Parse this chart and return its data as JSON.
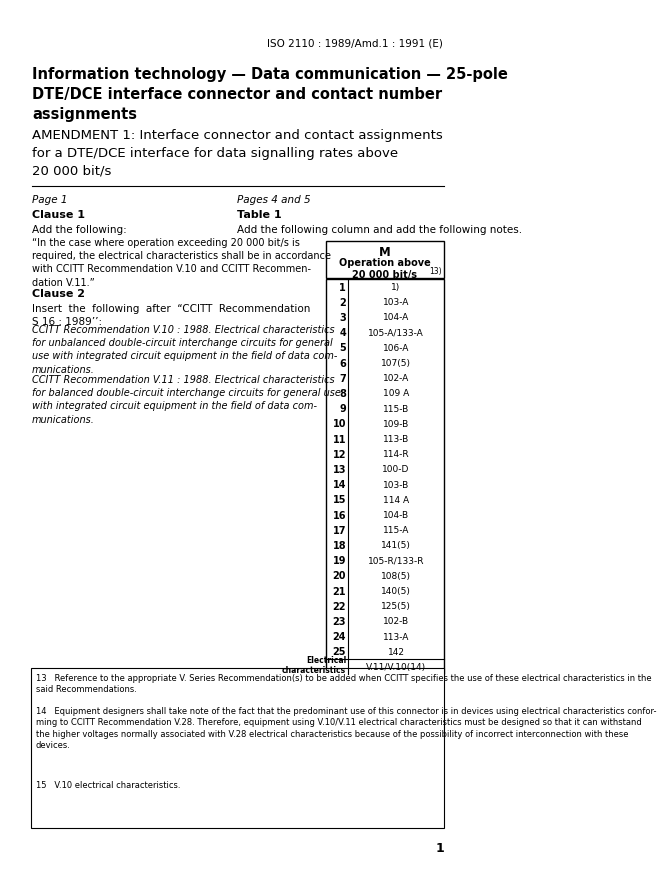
{
  "header": "ISO 2110 : 1989/Amd.1 : 1991 (E)",
  "title_bold": "Information technology — Data communication — 25-pole\nDTE/DCE interface connector and contact number\nassignments",
  "title_amendment": "AMENDMENT 1: Interface connector and contact assignments\nfor a DTE/DCE interface for data signalling rates above\n20 000 bit/s",
  "left_col_header1": "Page 1",
  "left_col_header2": "Clause 1",
  "left_col_add": "Add the following:",
  "left_clause1_text": "“In the case where operation exceeding 20 000 bit/s is\nrequired, the electrical characteristics shall be in accordance\nwith CCITT Recommendation V.10 and CCITT Recommen-\ndation V.11.”",
  "left_col_header3": "Clause 2",
  "left_clause2_intro": "Insert  the  following  after  “CCITT  Recommendation\nS 16 : 1989’’:",
  "left_clause2_ref1_title": "CCITT Recommendation V.10 : 1988. Electrical characteristics\nfor unbalanced double-circuit interchange circuits for general\nuse with integrated circuit equipment in the field of data com-\nmunications.",
  "left_clause2_ref2_title": "CCITT Recommendation V.11 : 1988. Electrical characteristics\nfor balanced double-circuit interchange circuits for general use\nwith integrated circuit equipment in the field of data com-\nmunications.",
  "right_col_header1": "Pages 4 and 5",
  "right_col_header2": "Table 1",
  "right_col_add": "Add the following column and add the following notes.",
  "table_col_header": "M",
  "table_col_subheader": "Operation above\n20 000 bit/s",
  "pin_numbers": [
    "1",
    "2",
    "3",
    "4",
    "5",
    "6",
    "7",
    "8",
    "9",
    "10",
    "11",
    "12",
    "13",
    "14",
    "15",
    "16",
    "17",
    "18",
    "19",
    "20",
    "21",
    "22",
    "23",
    "24",
    "25",
    "Electrical\ncharacteristics"
  ],
  "pin_values": [
    "1)",
    "103-A",
    "104-A",
    "105-A/133-A",
    "106-A",
    "107(5)",
    "102-A",
    "109 A",
    "115-B",
    "109-B",
    "113-B",
    "114-R",
    "100-D",
    "103-B",
    "114 A",
    "104-B",
    "115-A",
    "141(5)",
    "105-R/133-R",
    "108(5)",
    "140(5)",
    "125(5)",
    "102-B",
    "113-A",
    "142",
    "V.11/V.10(14)"
  ],
  "footnote13": "13   Reference to the appropriate V. Series Recommendation(s) to be added when CCITT specifies the use of these electrical characteristics in the\nsaid Recommendations.",
  "footnote14": "14   Equipment designers shall take note of the fact that the predominant use of this connector is in devices using electrical characteristics confor-\nming to CCITT Recommendation V.28. Therefore, equipment using V.10/V.11 electrical characteristics must be designed so that it can withstand\nthe higher voltages normally associated with V.28 electrical characteristics because of the possibility of incorrect interconnection with these\ndevices.",
  "footnote15": "15   V.10 electrical characteristics.",
  "page_number": "1"
}
